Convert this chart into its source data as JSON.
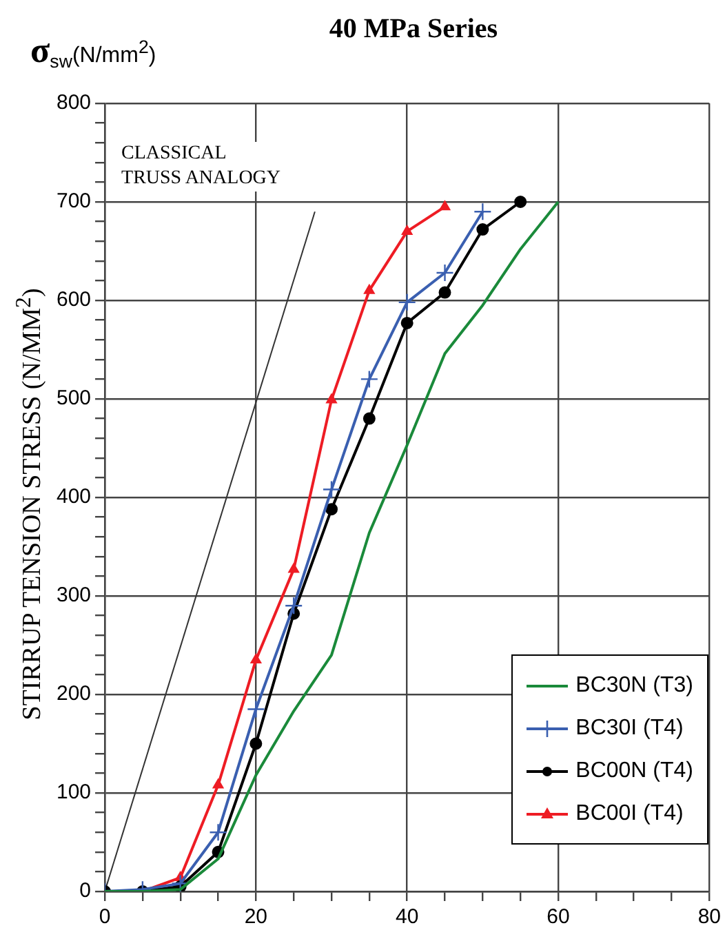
{
  "chart_data": {
    "type": "line",
    "title": "40 MPa Series",
    "ylabel": "STIRRUP TENSION STRESS (N/MM$^{2}$)",
    "annotations": [
      "σ$_{sw}$(N/mm$^{2}$)",
      "CLASSICAL\nTRUSS ANALOGY"
    ],
    "xlim": [
      0,
      80
    ],
    "ylim": [
      0,
      800
    ],
    "xticks": [
      0,
      {
        "value": 5,
        "label": null
      },
      {
        "value": 10,
        "label": null
      },
      {
        "value": 15,
        "label": null
      },
      20,
      {
        "value": 25,
        "label": null
      },
      {
        "value": 30,
        "label": null
      },
      {
        "value": 35,
        "label": null
      },
      40,
      {
        "value": 45,
        "label": null
      },
      {
        "value": 50,
        "label": null
      },
      {
        "value": 55,
        "label": null
      },
      60,
      {
        "value": 65,
        "label": null
      },
      {
        "value": 70,
        "label": null
      },
      {
        "value": 75,
        "label": null
      },
      80
    ],
    "yticks": [
      0,
      {
        "value": 20,
        "label": null
      },
      {
        "value": 40,
        "label": null
      },
      {
        "value": 60,
        "label": null
      },
      {
        "value": 80,
        "label": null
      },
      100,
      {
        "value": 120,
        "label": null
      },
      {
        "value": 140,
        "label": null
      },
      {
        "value": 160,
        "label": null
      },
      {
        "value": 180,
        "label": null
      },
      200,
      {
        "value": 220,
        "label": null
      },
      {
        "value": 240,
        "label": null
      },
      {
        "value": 260,
        "label": null
      },
      {
        "value": 280,
        "label": null
      },
      300,
      {
        "value": 320,
        "label": null
      },
      {
        "value": 340,
        "label": null
      },
      {
        "value": 360,
        "label": null
      },
      {
        "value": 380,
        "label": null
      },
      400,
      {
        "value": 420,
        "label": null
      },
      {
        "value": 440,
        "label": null
      },
      {
        "value": 460,
        "label": null
      },
      {
        "value": 480,
        "label": null
      },
      500,
      {
        "value": 520,
        "label": null
      },
      {
        "value": 540,
        "label": null
      },
      {
        "value": 560,
        "label": null
      },
      {
        "value": 580,
        "label": null
      },
      600,
      {
        "value": 620,
        "label": null
      },
      {
        "value": 640,
        "label": null
      },
      {
        "value": 660,
        "label": null
      },
      {
        "value": 680,
        "label": null
      },
      700,
      {
        "value": 720,
        "label": null
      },
      {
        "value": 740,
        "label": null
      },
      {
        "value": 760,
        "label": null
      },
      {
        "value": 780,
        "label": null
      },
      800
    ],
    "grid": true,
    "legend": "bottom right",
    "series": [
      {
        "name": "BC30N (T3)",
        "color": "#1a8a3a",
        "marker": "none",
        "x": [
          0,
          5,
          10,
          15,
          20,
          25,
          30,
          35,
          40,
          45,
          50,
          55,
          60
        ],
        "values": [
          0,
          0,
          2,
          33,
          118,
          183,
          240,
          364,
          453,
          546,
          595,
          652,
          700
        ]
      },
      {
        "name": "BC30I (T4)",
        "color": "#3a5fb0",
        "marker": "cross",
        "x": [
          0,
          5,
          10,
          15,
          20,
          25,
          30,
          35,
          40,
          45,
          50
        ],
        "values": [
          0,
          2,
          8,
          60,
          185,
          290,
          408,
          520,
          598,
          628,
          690
        ]
      },
      {
        "name": "BC00N (T4)",
        "color": "#000000",
        "marker": "circle",
        "x": [
          0,
          5,
          10,
          15,
          20,
          25,
          30,
          35,
          40,
          45,
          50,
          55
        ],
        "values": [
          0,
          0,
          5,
          40,
          150,
          282,
          388,
          480,
          577,
          608,
          672,
          700
        ]
      },
      {
        "name": "BC00I (T4)",
        "color": "#ee1c24",
        "marker": "triangle",
        "x": [
          0,
          5,
          10,
          15,
          20,
          25,
          30,
          35,
          40,
          45
        ],
        "values": [
          0,
          0,
          14,
          108,
          235,
          327,
          499,
          610,
          670,
          695
        ]
      },
      {
        "color": "#333333",
        "marker": "none",
        "x": [
          0,
          27.8
        ],
        "values": [
          0,
          690
        ]
      }
    ]
  }
}
